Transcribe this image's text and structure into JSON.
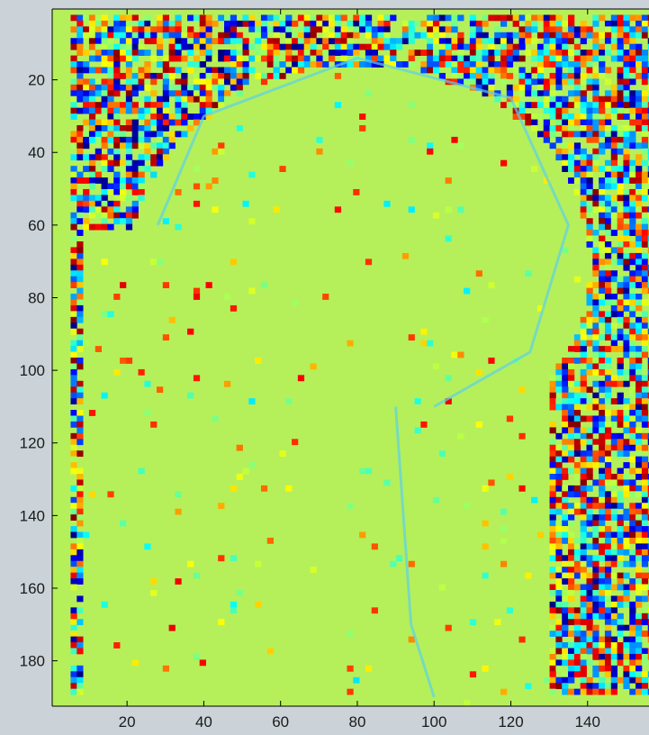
{
  "chart_data": {
    "type": "heatmap",
    "title": "",
    "xlabel": "",
    "ylabel": "",
    "xlim": [
      0.5,
      156
    ],
    "ylim": [
      192.5,
      0.5
    ],
    "y_reversed": true,
    "grid": false,
    "legend": "none",
    "colormap": "jet",
    "x_ticks": [
      20,
      40,
      60,
      80,
      100,
      120,
      140
    ],
    "x_tick_labels": [
      "20",
      "40",
      "60",
      "80",
      "100",
      "120",
      "140"
    ],
    "y_ticks": [
      20,
      40,
      60,
      80,
      100,
      120,
      140,
      160,
      180
    ],
    "y_tick_labels": [
      "20",
      "40",
      "60",
      "80",
      "100",
      "120",
      "140",
      "160",
      "180"
    ],
    "description_values": {
      "background_level": 0.62,
      "noise_regions": "phase noise outside head and in tissue borders"
    }
  },
  "colors": {
    "figure_background": "#cbd3d8",
    "map_background": "#b5f05a",
    "axis": "#000000"
  }
}
